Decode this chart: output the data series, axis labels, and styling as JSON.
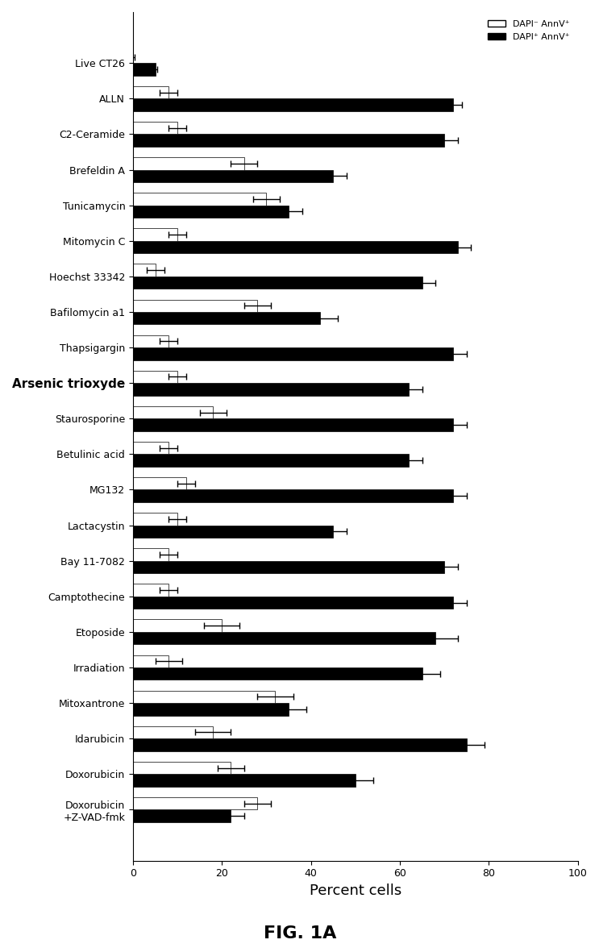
{
  "categories": [
    "Live CT26",
    "ALLN",
    "C2-Ceramide",
    "Brefeldin A",
    "Tunicamycin",
    "Mitomycin C",
    "Hoechst 33342",
    "Bafilomycin a1",
    "Thapsigargin",
    "Arsenic trioxyde",
    "Staurosporine",
    "Betulinic acid",
    "MG132",
    "Lactacystin",
    "Bay 11-7082",
    "Camptothecine",
    "Etoposide",
    "Irradiation",
    "Mitoxantrone",
    "Idarubicin",
    "Doxorubicin",
    "Doxorubicin\n+Z-VAD-fmk"
  ],
  "black_values": [
    5,
    72,
    70,
    45,
    35,
    73,
    65,
    42,
    72,
    62,
    72,
    62,
    72,
    45,
    70,
    72,
    68,
    65,
    35,
    75,
    50,
    22
  ],
  "white_values": [
    0,
    8,
    10,
    25,
    30,
    10,
    5,
    28,
    8,
    10,
    18,
    8,
    12,
    10,
    8,
    8,
    20,
    8,
    32,
    18,
    22,
    28
  ],
  "black_errors": [
    0.5,
    2,
    3,
    3,
    3,
    3,
    3,
    4,
    3,
    3,
    3,
    3,
    3,
    3,
    3,
    3,
    5,
    4,
    4,
    4,
    4,
    3
  ],
  "white_errors": [
    0.3,
    2,
    2,
    3,
    3,
    2,
    2,
    3,
    2,
    2,
    3,
    2,
    2,
    2,
    2,
    2,
    4,
    3,
    4,
    4,
    3,
    3
  ],
  "bold_labels": [
    "Arsenic trioxyde"
  ],
  "title": "FIG. 1A",
  "xlabel": "Percent cells",
  "xlim": [
    0,
    100
  ],
  "legend_labels": [
    "DAPI⁻ AnnV⁺",
    "DAPI⁺ AnnV⁺"
  ],
  "bar_height": 0.35,
  "background_color": "#ffffff",
  "black_color": "#000000",
  "white_color": "#ffffff",
  "bar_edge_color": "#000000"
}
